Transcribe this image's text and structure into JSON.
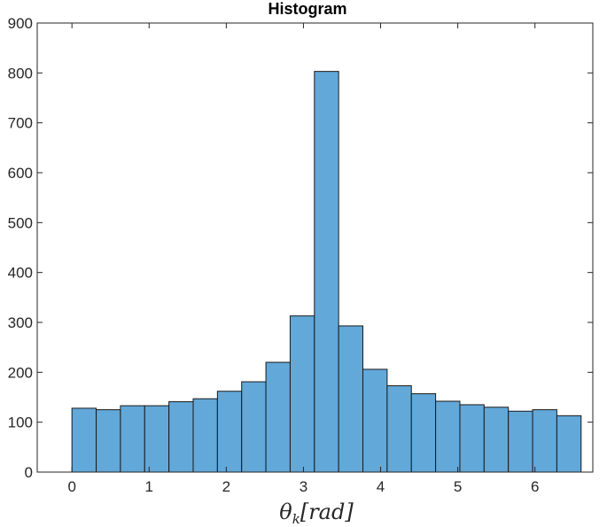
{
  "chart_data": {
    "type": "bar",
    "title": "Histogram",
    "xlabel": "θ",
    "xlabel_subscript": "k",
    "xlabel_unit": "[rad]",
    "ylabel": "",
    "xlim": [
      -0.45,
      6.75
    ],
    "ylim": [
      0,
      900
    ],
    "xticks": [
      0,
      1,
      2,
      3,
      4,
      5,
      6
    ],
    "yticks": [
      0,
      100,
      200,
      300,
      400,
      500,
      600,
      700,
      800,
      900
    ],
    "bin_start": 0,
    "bin_width": 0.3142,
    "values": [
      128,
      125,
      133,
      133,
      141,
      147,
      162,
      181,
      220,
      313,
      803,
      293,
      206,
      173,
      157,
      142,
      135,
      130,
      122,
      125,
      113
    ],
    "grid": false,
    "legend": "none",
    "colors": {
      "bar_fill": "#62a8d9",
      "bar_edge": "#1a1a1a",
      "axis": "#262626"
    }
  }
}
